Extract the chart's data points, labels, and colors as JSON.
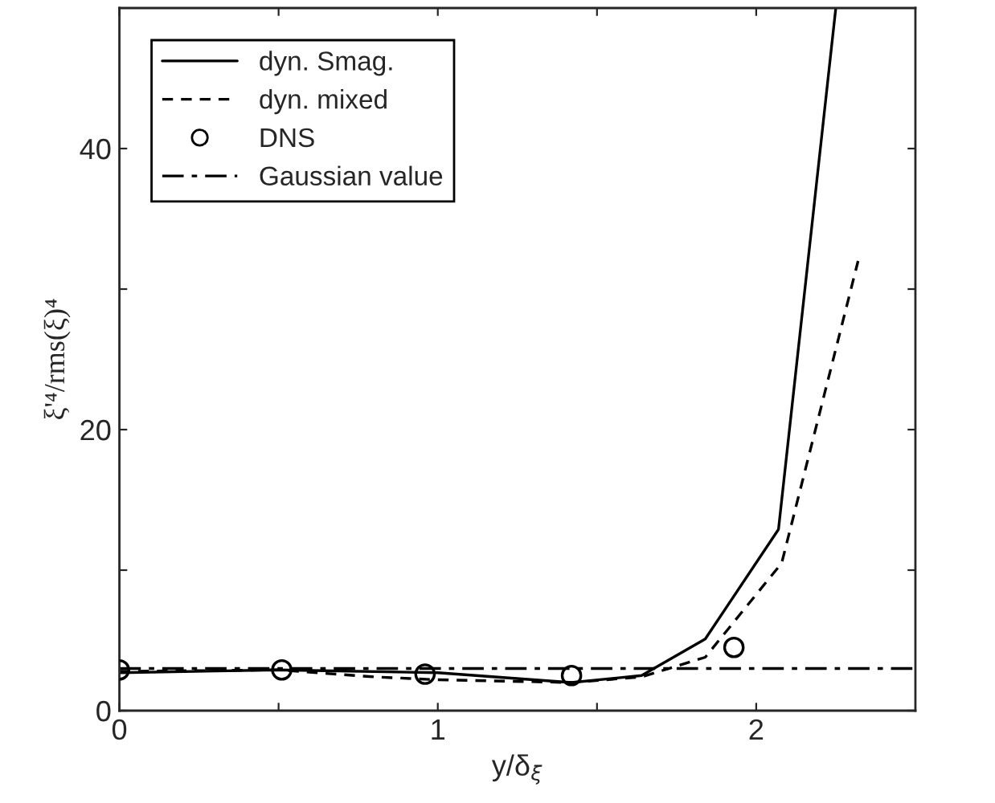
{
  "chart_data": {
    "type": "line",
    "xlabel": "y/δ$_{ξ}$",
    "ylabel": "ξ'⁴/rms(ξ)⁴",
    "xlim": [
      0,
      2.5
    ],
    "ylim": [
      0,
      50
    ],
    "xticks": [
      0,
      {
        "value": 0.5,
        "label": null
      },
      1,
      {
        "value": 1.5,
        "label": null
      },
      2
    ],
    "yticks": [
      0,
      {
        "value": 10,
        "label": null
      },
      20,
      {
        "value": 30,
        "label": null
      },
      40
    ],
    "legend": "top left",
    "grid": false,
    "series": [
      {
        "name": "dyn. Smag.",
        "line_style": "solid",
        "marker": "none",
        "color": "#000000",
        "x": [
          0,
          0.5,
          1.0,
          1.42,
          1.64,
          1.84,
          2.07,
          2.25
        ],
        "values": [
          2.7,
          2.9,
          2.7,
          2.0,
          2.5,
          5.1,
          12.9,
          50
        ]
      },
      {
        "name": "dyn. mixed",
        "line_style": "dashed",
        "marker": "none",
        "color": "#000000",
        "x": [
          0,
          0.5,
          0.8,
          1.0,
          1.42,
          1.64,
          1.84,
          2.08,
          2.32
        ],
        "values": [
          2.8,
          2.9,
          2.4,
          2.2,
          2.0,
          2.4,
          3.8,
          10.5,
          32
        ]
      },
      {
        "name": "DNS",
        "type": "scatter",
        "marker": "circle",
        "color": "#000000",
        "x": [
          0,
          0.51,
          0.96,
          1.42,
          1.93
        ],
        "values": [
          2.9,
          2.9,
          2.6,
          2.5,
          4.5
        ]
      },
      {
        "name": "Gaussian value",
        "line_style": "dashdot",
        "marker": "none",
        "color": "#000000",
        "x": [
          0,
          2.5
        ],
        "values": [
          3,
          3
        ]
      }
    ]
  }
}
